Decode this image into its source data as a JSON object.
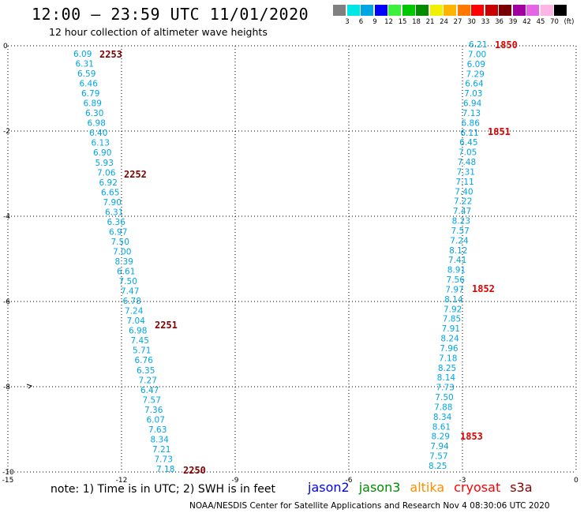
{
  "header": {
    "title": "12:00 – 23:59 UTC 11/01/2020",
    "subtitle": "12 hour collection of altimeter wave heights"
  },
  "color_scale": {
    "labels": [
      "3",
      "6",
      "9",
      "12",
      "15",
      "18",
      "21",
      "24",
      "27",
      "30",
      "33",
      "36",
      "39",
      "42",
      "45",
      "70"
    ],
    "unit": "(ft)",
    "colors": [
      "#808080",
      "#00e5e5",
      "#00a5e5",
      "#0000ff",
      "#3cf03c",
      "#00c800",
      "#008c00",
      "#f0f000",
      "#ffb400",
      "#ff7800",
      "#ff0000",
      "#c80000",
      "#780000",
      "#a000a0",
      "#e664e6",
      "#ffb4e6",
      "#000000"
    ]
  },
  "axes": {
    "x_ticks": [
      "-15",
      "-12",
      "-9",
      "-6",
      "-3",
      "0"
    ],
    "y_ticks": [
      "0",
      "-2",
      "-4",
      "-6",
      "-8",
      "-10"
    ]
  },
  "tracks": [
    {
      "values": [
        "6.09",
        "6.31",
        "6.59",
        "6.46",
        "6.79",
        "6.89",
        "6.30",
        "6.98",
        "6.40",
        "6.13",
        "6.90",
        "5.93",
        "7.06",
        "6.92",
        "6.65",
        "7.90",
        "6.31",
        "6.36",
        "6.97",
        "7.50",
        "7.00",
        "8.39",
        "6.61",
        "7.50",
        "7.47",
        "6.78",
        "7.24",
        "7.04",
        "6.98",
        "7.45",
        "5.71",
        "6.76",
        "6.35",
        "7.27",
        "6.47",
        "7.57",
        "7.36",
        "6.07",
        "7.63",
        "8.34",
        "7.21",
        "7.73",
        "7.18"
      ],
      "time_labels": [
        "2253",
        "2252",
        "2251",
        "2250"
      ]
    },
    {
      "values": [
        "6.21",
        "7.00",
        "6.09",
        "7.29",
        "6.64",
        "7.03",
        "6.94",
        "7.13",
        "6.86",
        "6.11",
        "6.45",
        "7.05",
        "7.48",
        "7.31",
        "7.11",
        "7.40",
        "7.22",
        "7.47",
        "8.23",
        "7.57",
        "7.24",
        "8.12",
        "7.41",
        "8.91",
        "7.56",
        "7.97",
        "8.14",
        "7.92",
        "7.85",
        "7.91",
        "8.24",
        "7.96",
        "7.18",
        "8.25",
        "8.14",
        "7.73",
        "7.50",
        "7.88",
        "8.34",
        "8.61",
        "8.29",
        "7.94",
        "7.57",
        "8.25"
      ],
      "time_labels": [
        "1850",
        "1851",
        "1852",
        "1853"
      ]
    }
  ],
  "notes": {
    "text": "note: 1) Time is in UTC; 2) SWH is in feet",
    "satellites": [
      {
        "name": "jason2",
        "color": "#0000ff"
      },
      {
        "name": "jason3",
        "color": "#008c00"
      },
      {
        "name": "altika",
        "color": "#ff8c00"
      },
      {
        "name": "cryosat",
        "color": "#ff0000"
      },
      {
        "name": "s3a",
        "color": "#800000"
      }
    ],
    "credit": "NOAA/NESDIS Center for Satellite Applications and Research     Nov  4 08:30:06 UTC 2020"
  }
}
